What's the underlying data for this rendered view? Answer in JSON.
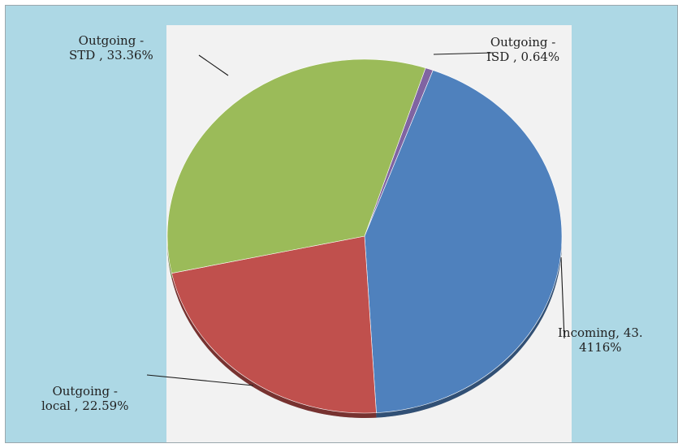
{
  "chart_data": {
    "type": "pie",
    "title": "",
    "slices": [
      {
        "name": "Outgoing - ISD",
        "value": 0.64,
        "label_line1": "Outgoing -",
        "label_line2": "ISD , 0.64%",
        "color": "#8064a2"
      },
      {
        "name": "Incoming",
        "value": 43.4116,
        "label_line1": "Incoming, 43.",
        "label_line2": "4116%",
        "color": "#4f81bd"
      },
      {
        "name": "Outgoing - local",
        "value": 22.59,
        "label_line1": "Outgoing -",
        "label_line2": "local , 22.59%",
        "color": "#c0504d"
      },
      {
        "name": "Outgoing - STD",
        "value": 33.36,
        "label_line1": "Outgoing -",
        "label_line2": "STD , 33.36%",
        "color": "#9bbb59"
      }
    ],
    "start_angle_deg": 18,
    "legend": "none",
    "data_labels": "outside with leader lines"
  },
  "colors": {
    "background": "#add8e5",
    "plot_area": "#f2f2f2"
  }
}
